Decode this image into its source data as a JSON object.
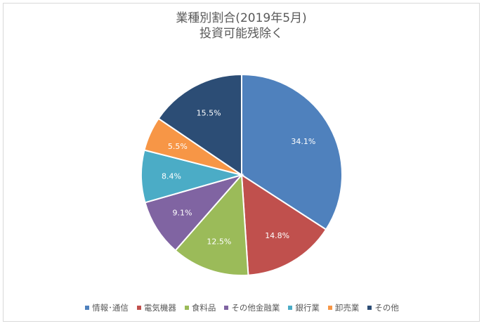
{
  "chart_data": {
    "type": "pie",
    "title_lines": [
      "業種別割合(2019年5月)",
      "投資可能残除く"
    ],
    "categories": [
      "情報･通信",
      "電気機器",
      "食料品",
      "その他金融業",
      "銀行業",
      "卸売業",
      "その他"
    ],
    "values": [
      34.1,
      14.8,
      12.5,
      9.1,
      8.4,
      5.5,
      15.5
    ],
    "value_labels": [
      "34.1%",
      "14.8%",
      "12.5%",
      "9.1%",
      "8.4%",
      "5.5%",
      "15.5%"
    ],
    "colors": [
      "#4f81bd",
      "#c0504d",
      "#9bbb59",
      "#8064a2",
      "#4bacc6",
      "#f79646",
      "#2c4d75"
    ],
    "label_color": "#ffffff",
    "start": "12 o'clock",
    "direction": "clockwise",
    "legend_position": "bottom"
  }
}
